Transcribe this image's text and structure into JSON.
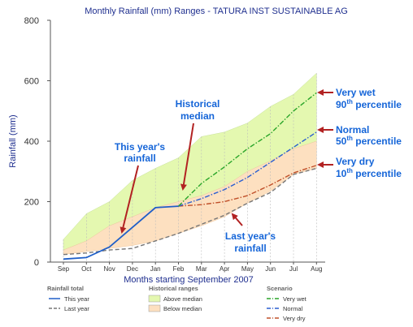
{
  "chart_data": {
    "type": "area",
    "title": "Monthly Rainfall (mm) Ranges - TATURA INST SUSTAINABLE AG",
    "xlabel": "Months starting September 2007",
    "ylabel": "Rainfall (mm)",
    "ylim": [
      0,
      800
    ],
    "yticks": [
      "0",
      "200",
      "400",
      "600",
      "800"
    ],
    "categories": [
      "Sep",
      "Oct",
      "Nov",
      "Dec",
      "Jan",
      "Feb",
      "Mar",
      "Apr",
      "May",
      "Jun",
      "Jul",
      "Aug"
    ],
    "grid": "vertical dashed at each month",
    "ranges": {
      "p10": [
        25,
        35,
        45,
        55,
        70,
        95,
        120,
        150,
        195,
        235,
        290,
        310
      ],
      "median": [
        40,
        70,
        120,
        150,
        180,
        200,
        220,
        250,
        300,
        335,
        375,
        400
      ],
      "p90": [
        75,
        160,
        200,
        270,
        310,
        345,
        415,
        430,
        460,
        515,
        555,
        625
      ]
    },
    "series": [
      {
        "name": "This year",
        "color": "#1f5fc8",
        "style": "solid",
        "x": [
          "Sep",
          "Oct",
          "Nov",
          "Dec",
          "Jan",
          "Feb"
        ],
        "values": [
          10,
          15,
          50,
          115,
          180,
          185
        ]
      },
      {
        "name": "Last year",
        "color": "#777777",
        "style": "dashed",
        "x": [
          "Sep",
          "Oct",
          "Nov",
          "Dec",
          "Jan",
          "Feb",
          "Mar",
          "Apr",
          "May",
          "Jun",
          "Jul",
          "Aug"
        ],
        "values": [
          25,
          30,
          40,
          45,
          70,
          95,
          125,
          155,
          195,
          230,
          290,
          310
        ]
      },
      {
        "name": "Very wet",
        "color": "#2aa52a",
        "style": "dashdot",
        "x": [
          "Feb",
          "Mar",
          "Apr",
          "May",
          "Jun",
          "Jul",
          "Aug"
        ],
        "values": [
          185,
          260,
          315,
          375,
          425,
          500,
          560
        ]
      },
      {
        "name": "Normal",
        "color": "#2b5fd0",
        "style": "dashdot",
        "x": [
          "Feb",
          "Mar",
          "Apr",
          "May",
          "Jun",
          "Jul",
          "Aug"
        ],
        "values": [
          185,
          210,
          240,
          280,
          330,
          380,
          430
        ]
      },
      {
        "name": "Very dry",
        "color": "#c0502a",
        "style": "dashdot",
        "x": [
          "Feb",
          "Mar",
          "Apr",
          "May",
          "Jun",
          "Jul",
          "Aug"
        ],
        "values": [
          185,
          190,
          200,
          220,
          255,
          295,
          320
        ]
      }
    ],
    "colors": {
      "above_median": "#e4f8b0",
      "below_median": "#fde0c0",
      "annotation_text": "#1565d8",
      "annotation_arrow": "#b22222"
    },
    "annotations": {
      "this_year": [
        "This year's",
        "rainfall"
      ],
      "historical_median": [
        "Historical",
        "median"
      ],
      "last_year": [
        "Last year's",
        "rainfall"
      ],
      "very_wet": {
        "line1": "Very wet",
        "num": "90",
        "sup": "th",
        "rest": " percentile"
      },
      "normal": {
        "line1": "Normal",
        "num": "50",
        "sup": "th",
        "rest": " percentile"
      },
      "very_dry": {
        "line1": "Very dry",
        "num": "10",
        "sup": "th",
        "rest": " percentile"
      }
    },
    "legend": {
      "rainfall_total": {
        "heading": "Rainfall total",
        "items": [
          "This year",
          "Last year"
        ]
      },
      "historical_ranges": {
        "heading": "Historical ranges",
        "items": [
          "Above median",
          "Below median"
        ]
      },
      "scenario": {
        "heading": "Scenario",
        "items": [
          "Very wet",
          "Normal",
          "Very dry"
        ]
      }
    }
  }
}
